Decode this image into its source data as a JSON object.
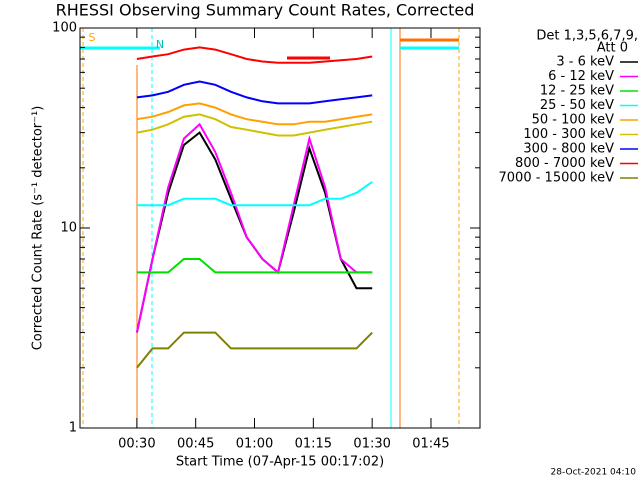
{
  "chart_data": {
    "type": "line",
    "title": "RHESSI Observing Summary Count Rates, Corrected",
    "x_label": "Start Time (07-Apr-15 00:17:02)",
    "y_label": "Corrected Count Rate (s⁻¹ detector⁻¹)",
    "legend_title": [
      "Det 1,3,5,6,7,9,",
      "Att 0"
    ],
    "timestamp": "28-Oct-2021 04:10",
    "flag_labels": [
      "S",
      "N"
    ],
    "log_y": true,
    "ylim": [
      1,
      100
    ],
    "yticks": [
      1,
      10,
      100
    ],
    "yminorticks": [
      2,
      3,
      4,
      5,
      6,
      7,
      8,
      9,
      20,
      30,
      40,
      50,
      60,
      70,
      80,
      90
    ],
    "xlim": [
      15.5,
      117.5
    ],
    "xticks": [
      {
        "value": 30,
        "label": "00:30"
      },
      {
        "value": 45,
        "label": "00:45"
      },
      {
        "value": 60,
        "label": "01:00"
      },
      {
        "value": 75,
        "label": "01:15"
      },
      {
        "value": 90,
        "label": "01:30"
      },
      {
        "value": 105,
        "label": "01:45"
      }
    ],
    "x": [
      30,
      34,
      38,
      42,
      46,
      50,
      54,
      58,
      62,
      66,
      70,
      74,
      78,
      82,
      86,
      90
    ],
    "series": [
      {
        "name": "3 - 6 keV",
        "color": "#000000",
        "values": [
          3,
          7,
          15,
          26,
          30,
          22,
          14,
          9,
          7,
          6,
          12,
          25,
          15,
          7,
          5,
          5
        ]
      },
      {
        "name": "6 - 12 keV",
        "color": "#ff00ff",
        "values": [
          3,
          7,
          16,
          28,
          33,
          24,
          15,
          9,
          7,
          6,
          13,
          28,
          16,
          7,
          6,
          6
        ]
      },
      {
        "name": "12 - 25 keV",
        "color": "#00e000",
        "values": [
          6,
          6,
          6,
          7,
          7,
          6,
          6,
          6,
          6,
          6,
          6,
          6,
          6,
          6,
          6,
          6
        ]
      },
      {
        "name": "25 - 50 keV",
        "color": "#00ffff",
        "values": [
          13,
          13,
          13,
          14,
          14,
          14,
          13,
          13,
          13,
          13,
          13,
          13,
          14,
          14,
          15,
          17
        ]
      },
      {
        "name": "50 - 100 keV",
        "color": "#ffa000",
        "values": [
          35,
          36,
          38,
          41,
          42,
          40,
          37,
          35,
          34,
          33,
          33,
          34,
          34,
          35,
          36,
          37
        ]
      },
      {
        "name": "100 - 300 keV",
        "color": "#d0c000",
        "values": [
          30,
          31,
          33,
          36,
          37,
          35,
          32,
          31,
          30,
          29,
          29,
          30,
          31,
          32,
          33,
          34
        ]
      },
      {
        "name": "300 - 800 keV",
        "color": "#0000ff",
        "values": [
          45,
          46,
          48,
          52,
          54,
          52,
          48,
          45,
          43,
          42,
          42,
          42,
          43,
          44,
          45,
          46
        ]
      },
      {
        "name": "800 - 7000 keV",
        "color": "#ff0000",
        "values": [
          70,
          72,
          74,
          78,
          80,
          78,
          74,
          70,
          68,
          67,
          67,
          67,
          68,
          69,
          70,
          72
        ]
      },
      {
        "name": "7000 - 15000 keV",
        "color": "#808000",
        "values": [
          2,
          2.5,
          2.5,
          3,
          3,
          3,
          2.5,
          2.5,
          2.5,
          2.5,
          2.5,
          2.5,
          2.5,
          2.5,
          2.5,
          3
        ]
      }
    ]
  }
}
